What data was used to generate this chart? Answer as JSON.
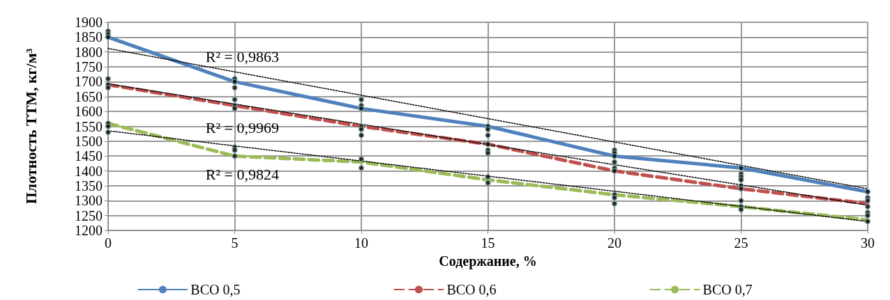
{
  "chart_data": {
    "type": "line",
    "xlabel": "Содержание, %",
    "ylabel": "Плотность ТТМ, кг/м³",
    "x": [
      0,
      5,
      10,
      15,
      20,
      25,
      30
    ],
    "xlim": [
      0,
      30
    ],
    "xticks": [
      0,
      5,
      10,
      15,
      20,
      25,
      30
    ],
    "ylim": [
      1200,
      1900
    ],
    "yticks": [
      1200,
      1250,
      1300,
      1350,
      1400,
      1450,
      1500,
      1550,
      1600,
      1650,
      1700,
      1750,
      1800,
      1850,
      1900
    ],
    "grid": true,
    "legend": "bottom",
    "marker": "none",
    "series": [
      {
        "name": "ВСО 0,5",
        "color": "#4f81bd",
        "line_style": "solid",
        "values": [
          1850,
          1700,
          1610,
          1550,
          1450,
          1410,
          1330
        ]
      },
      {
        "name": "ВСО 0,6",
        "color": "#c0504d",
        "line_style": "dashed",
        "values": [
          1690,
          1620,
          1550,
          1490,
          1400,
          1340,
          1290
        ]
      },
      {
        "name": "ВСО 0,7",
        "color": "#9bbb59",
        "line_style": "dashed",
        "values": [
          1560,
          1450,
          1430,
          1370,
          1320,
          1280,
          1235
        ]
      },
      {
        "type": "line",
        "color": "#000000",
        "line_style": "dotted",
        "x": [
          0,
          30
        ],
        "values": [
          1812,
          1340
        ]
      },
      {
        "type": "line",
        "color": "#000000",
        "line_style": "dotted",
        "x": [
          0,
          30
        ],
        "values": [
          1693,
          1285
        ]
      },
      {
        "type": "line",
        "color": "#000000",
        "line_style": "dotted",
        "x": [
          0,
          30
        ],
        "values": [
          1535,
          1230
        ]
      },
      {
        "type": "scatter",
        "color": "#000000",
        "marker": "circle",
        "x": [
          0,
          0,
          0,
          5,
          5,
          5,
          10,
          10,
          10,
          15,
          15,
          15,
          20,
          20,
          20,
          25,
          25,
          25,
          30,
          30
        ],
        "values": [
          1870,
          1860,
          1850,
          1710,
          1700,
          1680,
          1640,
          1620,
          1610,
          1550,
          1540,
          1520,
          1470,
          1460,
          1450,
          1410,
          1390,
          1380,
          1330,
          1310
        ]
      },
      {
        "type": "scatter",
        "color": "#000000",
        "marker": "circle",
        "x": [
          0,
          0,
          0,
          5,
          5,
          5,
          10,
          10,
          10,
          15,
          15,
          15,
          20,
          20,
          20,
          25,
          25,
          25,
          30,
          30
        ],
        "values": [
          1710,
          1690,
          1680,
          1640,
          1620,
          1610,
          1550,
          1540,
          1520,
          1490,
          1470,
          1460,
          1430,
          1410,
          1400,
          1370,
          1350,
          1340,
          1300,
          1280
        ]
      },
      {
        "type": "scatter",
        "color": "#000000",
        "marker": "circle",
        "x": [
          0,
          0,
          0,
          5,
          5,
          5,
          10,
          10,
          15,
          15,
          20,
          20,
          20,
          25,
          25,
          25,
          30,
          30,
          30
        ],
        "values": [
          1560,
          1550,
          1530,
          1480,
          1470,
          1450,
          1440,
          1410,
          1380,
          1360,
          1320,
          1310,
          1290,
          1300,
          1280,
          1270,
          1260,
          1250,
          1230
        ]
      }
    ],
    "annotations": [
      "R² = 0,9863",
      "R² = 0,9969",
      "R² = 0,9824"
    ]
  }
}
